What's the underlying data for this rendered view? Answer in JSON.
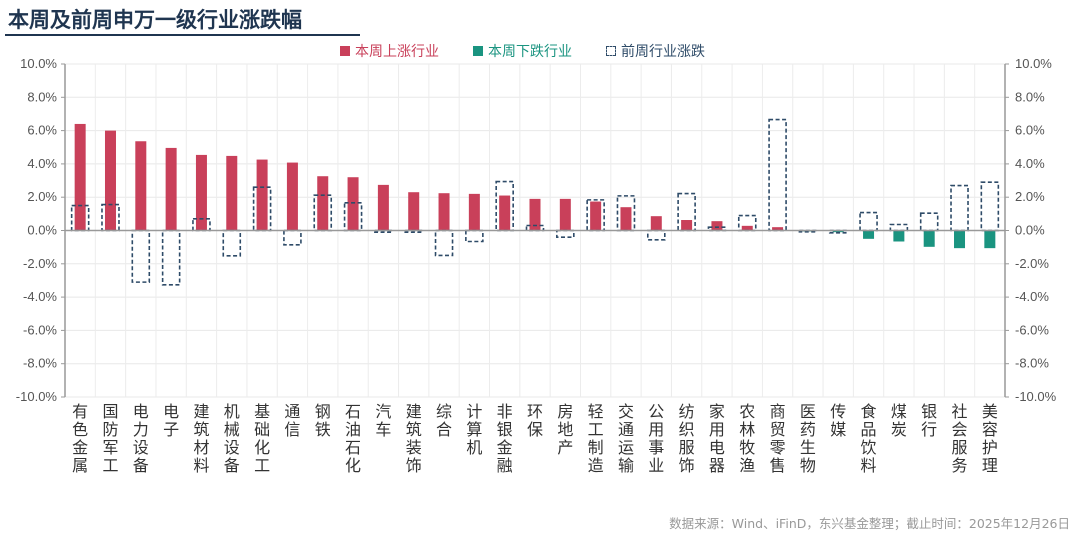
{
  "title": "本周及前周申万一级行业涨跌幅",
  "source": "数据来源：Wind、iFinD，东兴基金整理；截止时间：2025年12月26日",
  "colors": {
    "up": "#C9405A",
    "down": "#1A9480",
    "prev": "#2E4B68"
  },
  "chart_data": {
    "type": "bar",
    "title": "本周及前周申万一级行业涨跌幅",
    "legend": [
      "本周上涨行业",
      "本周下跌行业",
      "前周行业涨跌"
    ],
    "legend_position": "top",
    "ylim": [
      -10,
      10
    ],
    "yticks": [
      "10.0%",
      "8.0%",
      "6.0%",
      "4.0%",
      "2.0%",
      "0.0%",
      "-2.0%",
      "-4.0%",
      "-6.0%",
      "-8.0%",
      "-10.0%"
    ],
    "grid": true,
    "categories": [
      "有色金属",
      "国防军工",
      "电力设备",
      "电子",
      "建筑材料",
      "机械设备",
      "基础化工",
      "通信",
      "钢铁",
      "石油石化",
      "汽车",
      "建筑装饰",
      "综合",
      "计算机",
      "非银金融",
      "环保",
      "房地产",
      "轻工制造",
      "交通运输",
      "公用事业",
      "纺织服饰",
      "家用电器",
      "农林牧渔",
      "商贸零售",
      "医药生物",
      "传媒",
      "食品饮料",
      "煤炭",
      "银行",
      "社会服务",
      "美容护理"
    ],
    "series": [
      {
        "name": "本周",
        "values": [
          6.4,
          6.0,
          5.36,
          4.96,
          4.54,
          4.48,
          4.26,
          4.08,
          3.26,
          3.2,
          2.74,
          2.3,
          2.24,
          2.2,
          2.1,
          1.9,
          1.9,
          1.74,
          1.4,
          0.86,
          0.63,
          0.56,
          0.28,
          0.2,
          -0.06,
          -0.1,
          -0.5,
          -0.66,
          -0.98,
          -1.06,
          -1.06
        ]
      },
      {
        "name": "前周",
        "values": [
          1.5,
          1.56,
          -3.1,
          -3.26,
          0.7,
          -1.52,
          2.6,
          -0.86,
          2.12,
          1.66,
          -0.1,
          -0.1,
          -1.5,
          -0.66,
          2.94,
          0.3,
          -0.4,
          1.84,
          2.08,
          -0.56,
          2.22,
          0.2,
          0.9,
          6.66,
          -0.08,
          -0.14,
          1.08,
          0.36,
          1.04,
          2.7,
          2.9
        ]
      }
    ]
  }
}
